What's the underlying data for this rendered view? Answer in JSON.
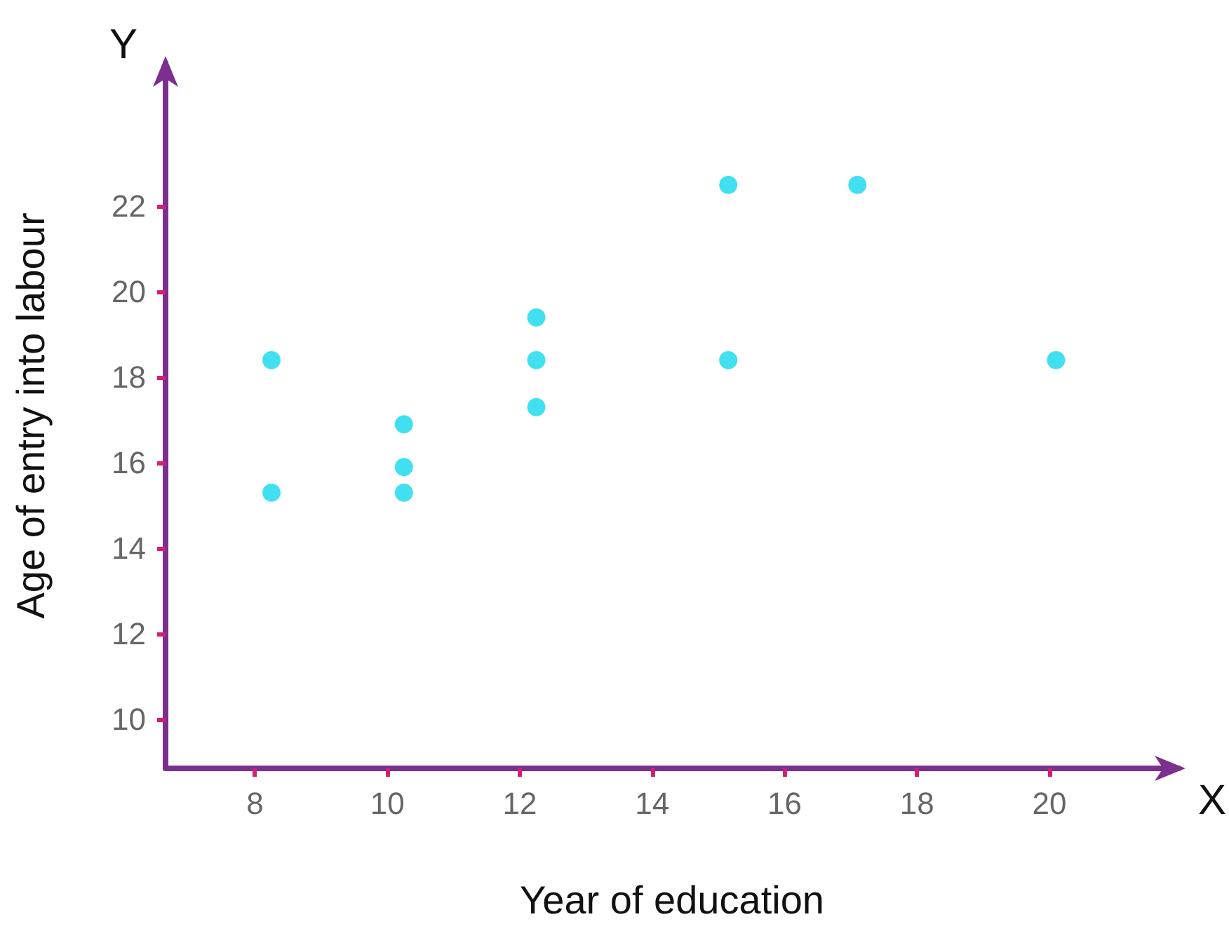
{
  "chart_data": {
    "type": "scatter",
    "xlabel": "Year of education",
    "ylabel": "Age of entry into labour",
    "x": [
      8.25,
      8.25,
      10.25,
      10.25,
      10.25,
      12.25,
      12.25,
      12.25,
      15.15,
      15.15,
      17.1,
      20.1
    ],
    "values": [
      18.4,
      15.3,
      16.9,
      15.9,
      15.3,
      19.4,
      18.4,
      17.3,
      22.5,
      18.4,
      22.5,
      18.4
    ],
    "color": "#12d8ee",
    "marker": "circle",
    "xlim": [
      6.65,
      21.95
    ],
    "xticks": [
      8,
      10,
      12,
      14,
      16,
      18,
      20
    ],
    "ylim": [
      8.85,
      25.35
    ],
    "yticks": [
      10,
      12,
      14,
      16,
      18,
      20,
      22
    ],
    "grid": false,
    "annotations": [
      "X",
      "Y"
    ]
  }
}
